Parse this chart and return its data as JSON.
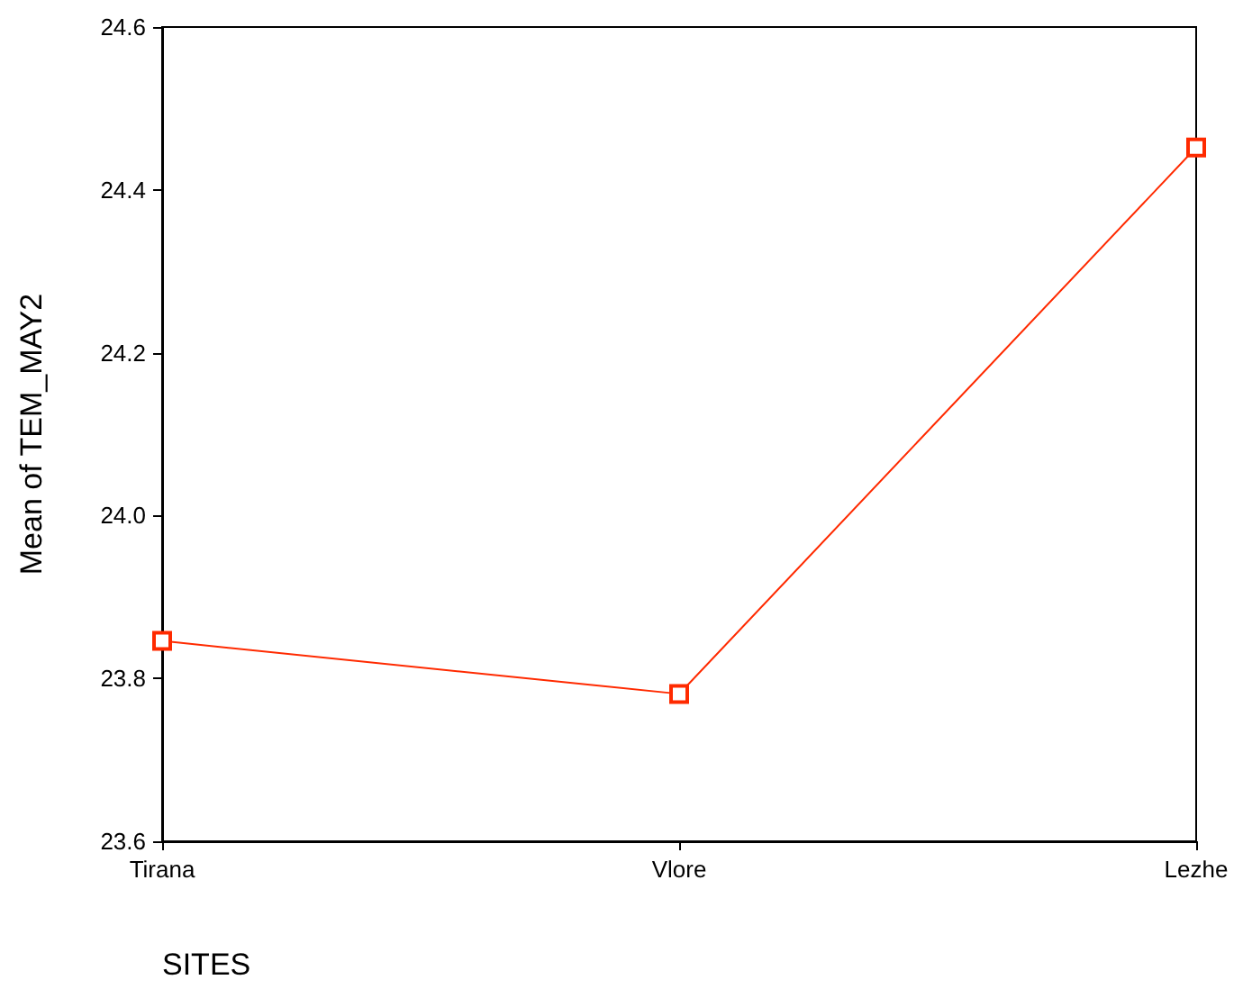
{
  "chart_data": {
    "type": "line",
    "xlabel": "SITES",
    "ylabel": "Mean of TEM_MAY2",
    "categories": [
      "Tirana",
      "Vlore",
      "Lezhe"
    ],
    "series": [
      {
        "color": "#ff2a00",
        "values": [
          23.846,
          23.781,
          24.452
        ]
      }
    ],
    "ylim": [
      23.6,
      24.6
    ],
    "yticks": [
      {
        "value": 23.6,
        "label": "23.6"
      },
      {
        "value": 23.8,
        "label": "23.8"
      },
      {
        "value": 24,
        "label": "24.0"
      },
      {
        "value": 24.2,
        "label": "24.2"
      },
      {
        "value": 24.4,
        "label": "24.4"
      },
      {
        "value": 24.6,
        "label": "24.6"
      }
    ],
    "grid": false,
    "marker": "square",
    "line_style": "solid"
  }
}
